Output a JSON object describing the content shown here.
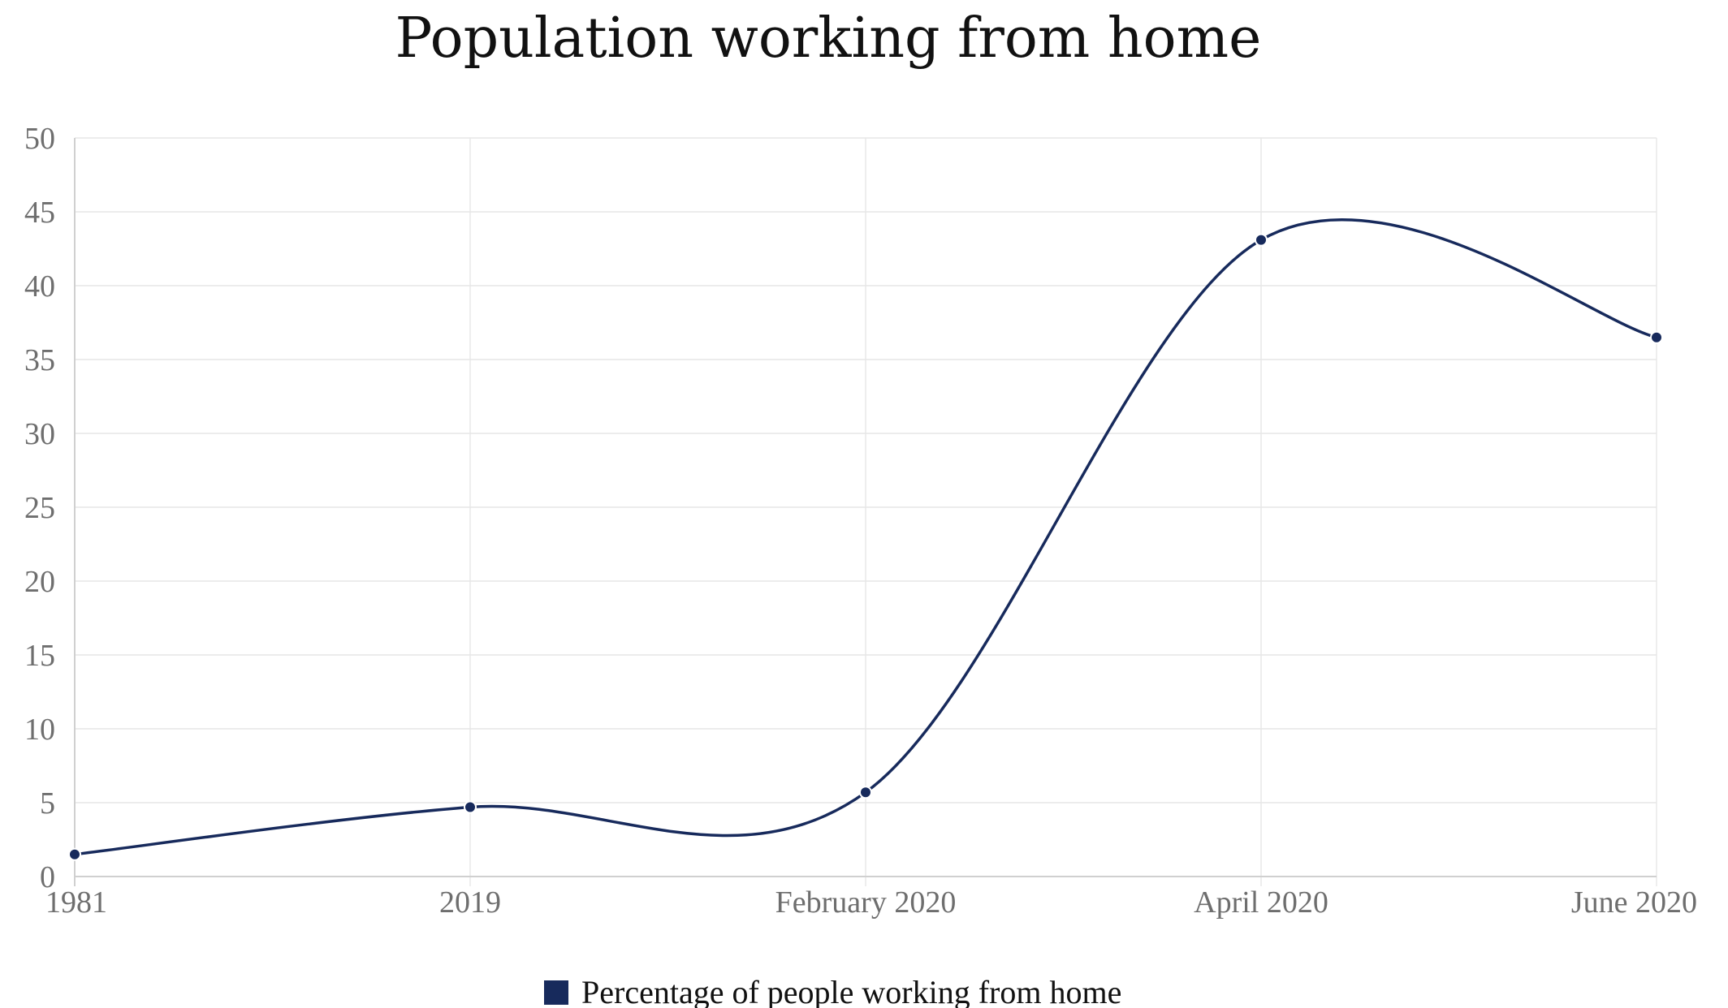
{
  "chart_data": {
    "type": "line",
    "title": "Population working from home",
    "xlabel": "",
    "ylabel": "",
    "categories": [
      "1981",
      "2019",
      "February 2020",
      "April 2020",
      "June 2020"
    ],
    "series": [
      {
        "name": "Percentage of people working from home",
        "values": [
          1.5,
          4.7,
          5.7,
          43.1,
          36.5
        ],
        "color": "#172a5c"
      }
    ],
    "ylim": [
      0,
      50
    ],
    "yticks": [
      "0",
      "5",
      "10",
      "15",
      "20",
      "25",
      "30",
      "35",
      "40",
      "45",
      "50"
    ],
    "grid": true,
    "smooth": true,
    "legend_position": "bottom-center"
  }
}
